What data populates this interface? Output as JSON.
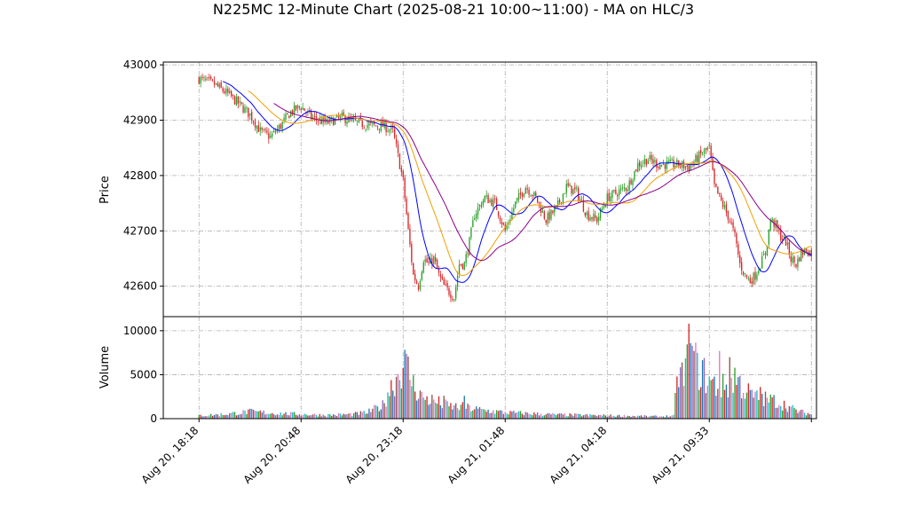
{
  "chart_data": {
    "type": "candlestick",
    "title": "N225MC 12-Minute Chart (2025-08-21 10:00~11:00) - MA on HLC/3",
    "price_panel": {
      "ylabel": "Price",
      "ylim": [
        42545,
        43005
      ],
      "yticks": [
        42600,
        42700,
        42800,
        42900,
        43000
      ],
      "ytick_labels": [
        "42600",
        "42700",
        "42800",
        "42900",
        "43000"
      ]
    },
    "volume_panel": {
      "ylabel": "Volume",
      "ylim": [
        0,
        11600
      ],
      "yticks": [
        0,
        5000,
        10000
      ],
      "ytick_labels": [
        "0",
        "5000",
        "10000"
      ]
    },
    "xlim": [
      -7,
      121
    ],
    "xticks": [
      0,
      20,
      40,
      60,
      80,
      100,
      120
    ],
    "xtick_labels": [
      "Aug 20, 18:18",
      "Aug 20, 20:48",
      "Aug 20, 23:18",
      "Aug 21, 01:48",
      "Aug 21, 04:18",
      "Aug 21, 09:33",
      ""
    ],
    "grid": true,
    "colors": {
      "up": "#2ca02c",
      "down": "#d62728",
      "ma_short": "#0000ff",
      "ma_mid": "#f0a000",
      "ma_long": "#8b008b",
      "volume_palette": [
        "#2ca02c",
        "#d62728",
        "#1f77b4",
        "#9467bd",
        "#8c564b",
        "#e377c2",
        "#17becf"
      ]
    },
    "price_waypoints": [
      [
        0,
        42975
      ],
      [
        3,
        42965
      ],
      [
        6,
        42945
      ],
      [
        10,
        42910
      ],
      [
        12,
        42880
      ],
      [
        14,
        42870
      ],
      [
        16,
        42890
      ],
      [
        18,
        42915
      ],
      [
        20,
        42925
      ],
      [
        22,
        42905
      ],
      [
        25,
        42895
      ],
      [
        28,
        42905
      ],
      [
        31,
        42895
      ],
      [
        34,
        42890
      ],
      [
        36,
        42890
      ],
      [
        38,
        42880
      ],
      [
        40,
        42790
      ],
      [
        41,
        42700
      ],
      [
        42,
        42620
      ],
      [
        43,
        42600
      ],
      [
        44,
        42650
      ],
      [
        45,
        42640
      ],
      [
        46,
        42650
      ],
      [
        47,
        42620
      ],
      [
        48,
        42600
      ],
      [
        50,
        42580
      ],
      [
        51,
        42640
      ],
      [
        52,
        42640
      ],
      [
        53,
        42680
      ],
      [
        54,
        42730
      ],
      [
        56,
        42760
      ],
      [
        58,
        42750
      ],
      [
        60,
        42700
      ],
      [
        62,
        42750
      ],
      [
        64,
        42780
      ],
      [
        66,
        42760
      ],
      [
        68,
        42720
      ],
      [
        70,
        42740
      ],
      [
        72,
        42780
      ],
      [
        74,
        42770
      ],
      [
        76,
        42730
      ],
      [
        78,
        42720
      ],
      [
        80,
        42760
      ],
      [
        82,
        42770
      ],
      [
        84,
        42780
      ],
      [
        86,
        42820
      ],
      [
        88,
        42830
      ],
      [
        90,
        42820
      ],
      [
        92,
        42820
      ],
      [
        94,
        42820
      ],
      [
        96,
        42815
      ],
      [
        98,
        42835
      ],
      [
        100,
        42850
      ],
      [
        101,
        42780
      ],
      [
        102,
        42760
      ],
      [
        104,
        42720
      ],
      [
        105,
        42690
      ],
      [
        106,
        42640
      ],
      [
        107,
        42620
      ],
      [
        108,
        42610
      ],
      [
        109,
        42620
      ],
      [
        110,
        42640
      ],
      [
        111,
        42660
      ],
      [
        112,
        42720
      ],
      [
        113,
        42710
      ],
      [
        114,
        42690
      ],
      [
        115,
        42680
      ],
      [
        116,
        42650
      ],
      [
        117,
        42640
      ],
      [
        118,
        42660
      ],
      [
        119,
        42665
      ],
      [
        120,
        42660
      ]
    ],
    "volume_waypoints": [
      [
        0,
        350
      ],
      [
        5,
        500
      ],
      [
        10,
        800
      ],
      [
        15,
        600
      ],
      [
        20,
        500
      ],
      [
        25,
        400
      ],
      [
        30,
        500
      ],
      [
        33,
        700
      ],
      [
        34,
        1000
      ],
      [
        36,
        1500
      ],
      [
        37,
        3000
      ],
      [
        38,
        4000
      ],
      [
        39,
        5000
      ],
      [
        40,
        6300
      ],
      [
        41,
        5500
      ],
      [
        42,
        3800
      ],
      [
        43,
        3000
      ],
      [
        45,
        2200
      ],
      [
        47,
        1800
      ],
      [
        49,
        1400
      ],
      [
        52,
        1300
      ],
      [
        55,
        1000
      ],
      [
        60,
        700
      ],
      [
        70,
        450
      ],
      [
        80,
        350
      ],
      [
        85,
        300
      ],
      [
        90,
        250
      ],
      [
        93,
        300
      ],
      [
        94,
        5500
      ],
      [
        95,
        4500
      ],
      [
        96,
        7000
      ],
      [
        97,
        6500
      ],
      [
        98,
        5500
      ],
      [
        100,
        4200
      ],
      [
        102,
        3500
      ],
      [
        104,
        3800
      ],
      [
        105,
        4800
      ],
      [
        107,
        3200
      ],
      [
        109,
        2400
      ],
      [
        111,
        2200
      ],
      [
        113,
        2000
      ],
      [
        115,
        1500
      ],
      [
        117,
        900
      ],
      [
        120,
        500
      ]
    ],
    "volume_spikes": [
      [
        96,
        10800
      ],
      [
        97,
        7700
      ],
      [
        102,
        7700
      ],
      [
        104,
        7000
      ],
      [
        99,
        6900
      ],
      [
        48,
        2600
      ],
      [
        44,
        2400
      ],
      [
        52,
        2600
      ],
      [
        110,
        3600
      ]
    ],
    "series": []
  }
}
